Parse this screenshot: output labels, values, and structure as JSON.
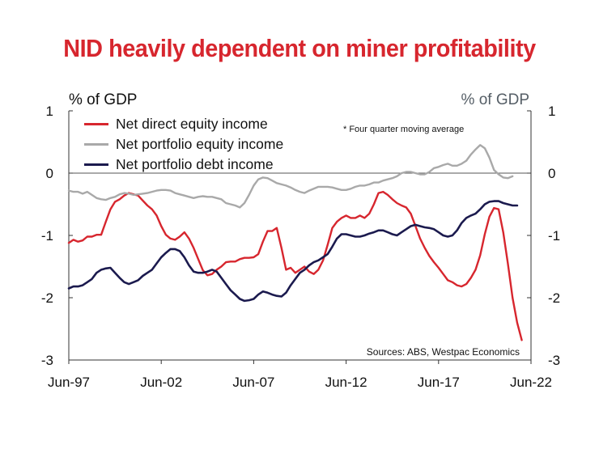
{
  "chart_data": {
    "type": "line",
    "title": "NID heavily dependent on miner profitability",
    "ylabel_left": "% of GDP",
    "ylabel_right": "% of GDP",
    "note": "* Four quarter moving average",
    "source": "Sources: ABS, Westpac Economics",
    "x_tick_labels": [
      "Jun-97",
      "Jun-02",
      "Jun-07",
      "Jun-12",
      "Jun-17",
      "Jun-22"
    ],
    "x_range": [
      1997.5,
      2022.5
    ],
    "ylim": [
      -3,
      1
    ],
    "y_ticks": [
      1,
      0,
      -1,
      -2,
      -3
    ],
    "grid": false,
    "legend_position": "top-left",
    "series": [
      {
        "name": "Net direct equity income",
        "color": "#d7262e",
        "points": [
          [
            1997.5,
            -1.12
          ],
          [
            1997.75,
            -1.07
          ],
          [
            1998.0,
            -1.1
          ],
          [
            1998.25,
            -1.08
          ],
          [
            1998.5,
            -1.02
          ],
          [
            1998.75,
            -1.02
          ],
          [
            1999.0,
            -0.99
          ],
          [
            1999.25,
            -0.99
          ],
          [
            1999.5,
            -0.78
          ],
          [
            1999.75,
            -0.58
          ],
          [
            2000.0,
            -0.46
          ],
          [
            2000.25,
            -0.42
          ],
          [
            2000.5,
            -0.36
          ],
          [
            2000.75,
            -0.32
          ],
          [
            2001.0,
            -0.34
          ],
          [
            2001.25,
            -0.36
          ],
          [
            2001.5,
            -0.44
          ],
          [
            2001.75,
            -0.52
          ],
          [
            2002.0,
            -0.58
          ],
          [
            2002.25,
            -0.68
          ],
          [
            2002.5,
            -0.85
          ],
          [
            2002.75,
            -0.99
          ],
          [
            2003.0,
            -1.05
          ],
          [
            2003.25,
            -1.07
          ],
          [
            2003.5,
            -1.02
          ],
          [
            2003.75,
            -0.95
          ],
          [
            2004.0,
            -1.05
          ],
          [
            2004.25,
            -1.2
          ],
          [
            2004.5,
            -1.38
          ],
          [
            2004.75,
            -1.56
          ],
          [
            2005.0,
            -1.64
          ],
          [
            2005.25,
            -1.62
          ],
          [
            2005.5,
            -1.55
          ],
          [
            2005.75,
            -1.5
          ],
          [
            2006.0,
            -1.43
          ],
          [
            2006.25,
            -1.42
          ],
          [
            2006.5,
            -1.42
          ],
          [
            2006.75,
            -1.38
          ],
          [
            2007.0,
            -1.36
          ],
          [
            2007.25,
            -1.36
          ],
          [
            2007.5,
            -1.35
          ],
          [
            2007.75,
            -1.3
          ],
          [
            2008.0,
            -1.1
          ],
          [
            2008.25,
            -0.93
          ],
          [
            2008.5,
            -0.93
          ],
          [
            2008.75,
            -0.88
          ],
          [
            2009.0,
            -1.2
          ],
          [
            2009.25,
            -1.55
          ],
          [
            2009.5,
            -1.52
          ],
          [
            2009.75,
            -1.6
          ],
          [
            2010.0,
            -1.55
          ],
          [
            2010.25,
            -1.5
          ],
          [
            2010.5,
            -1.58
          ],
          [
            2010.75,
            -1.62
          ],
          [
            2011.0,
            -1.55
          ],
          [
            2011.25,
            -1.4
          ],
          [
            2011.5,
            -1.15
          ],
          [
            2011.75,
            -0.88
          ],
          [
            2012.0,
            -0.78
          ],
          [
            2012.25,
            -0.72
          ],
          [
            2012.5,
            -0.68
          ],
          [
            2012.75,
            -0.72
          ],
          [
            2013.0,
            -0.72
          ],
          [
            2013.25,
            -0.68
          ],
          [
            2013.5,
            -0.72
          ],
          [
            2013.75,
            -0.65
          ],
          [
            2014.0,
            -0.5
          ],
          [
            2014.25,
            -0.32
          ],
          [
            2014.5,
            -0.3
          ],
          [
            2014.75,
            -0.35
          ],
          [
            2015.0,
            -0.42
          ],
          [
            2015.25,
            -0.48
          ],
          [
            2015.5,
            -0.52
          ],
          [
            2015.75,
            -0.55
          ],
          [
            2016.0,
            -0.65
          ],
          [
            2016.25,
            -0.85
          ],
          [
            2016.5,
            -1.05
          ],
          [
            2016.75,
            -1.2
          ],
          [
            2017.0,
            -1.33
          ],
          [
            2017.25,
            -1.43
          ],
          [
            2017.5,
            -1.52
          ],
          [
            2017.75,
            -1.62
          ],
          [
            2018.0,
            -1.72
          ],
          [
            2018.25,
            -1.75
          ],
          [
            2018.5,
            -1.8
          ],
          [
            2018.75,
            -1.82
          ],
          [
            2019.0,
            -1.78
          ],
          [
            2019.25,
            -1.68
          ],
          [
            2019.5,
            -1.55
          ],
          [
            2019.75,
            -1.32
          ],
          [
            2020.0,
            -0.98
          ],
          [
            2020.25,
            -0.7
          ],
          [
            2020.5,
            -0.56
          ],
          [
            2020.75,
            -0.58
          ],
          [
            2021.0,
            -0.95
          ],
          [
            2021.25,
            -1.45
          ],
          [
            2021.5,
            -2.0
          ],
          [
            2021.75,
            -2.4
          ],
          [
            2022.0,
            -2.68
          ]
        ]
      },
      {
        "name": "Net portfolio equity income",
        "color": "#a9a9a9",
        "points": [
          [
            1997.5,
            -0.28
          ],
          [
            1997.75,
            -0.3
          ],
          [
            1998.0,
            -0.3
          ],
          [
            1998.25,
            -0.33
          ],
          [
            1998.5,
            -0.3
          ],
          [
            1998.75,
            -0.35
          ],
          [
            1999.0,
            -0.4
          ],
          [
            1999.25,
            -0.42
          ],
          [
            1999.5,
            -0.43
          ],
          [
            1999.75,
            -0.4
          ],
          [
            2000.0,
            -0.38
          ],
          [
            2000.25,
            -0.34
          ],
          [
            2000.5,
            -0.32
          ],
          [
            2000.75,
            -0.33
          ],
          [
            2001.0,
            -0.35
          ],
          [
            2001.25,
            -0.34
          ],
          [
            2001.5,
            -0.33
          ],
          [
            2001.75,
            -0.32
          ],
          [
            2002.0,
            -0.3
          ],
          [
            2002.25,
            -0.28
          ],
          [
            2002.5,
            -0.27
          ],
          [
            2002.75,
            -0.27
          ],
          [
            2003.0,
            -0.28
          ],
          [
            2003.25,
            -0.32
          ],
          [
            2003.5,
            -0.34
          ],
          [
            2003.75,
            -0.36
          ],
          [
            2004.0,
            -0.38
          ],
          [
            2004.25,
            -0.4
          ],
          [
            2004.5,
            -0.38
          ],
          [
            2004.75,
            -0.37
          ],
          [
            2005.0,
            -0.38
          ],
          [
            2005.25,
            -0.38
          ],
          [
            2005.5,
            -0.4
          ],
          [
            2005.75,
            -0.42
          ],
          [
            2006.0,
            -0.48
          ],
          [
            2006.25,
            -0.5
          ],
          [
            2006.5,
            -0.52
          ],
          [
            2006.75,
            -0.55
          ],
          [
            2007.0,
            -0.48
          ],
          [
            2007.25,
            -0.35
          ],
          [
            2007.5,
            -0.2
          ],
          [
            2007.75,
            -0.1
          ],
          [
            2008.0,
            -0.07
          ],
          [
            2008.25,
            -0.08
          ],
          [
            2008.5,
            -0.12
          ],
          [
            2008.75,
            -0.16
          ],
          [
            2009.0,
            -0.18
          ],
          [
            2009.25,
            -0.2
          ],
          [
            2009.5,
            -0.23
          ],
          [
            2009.75,
            -0.27
          ],
          [
            2010.0,
            -0.3
          ],
          [
            2010.25,
            -0.32
          ],
          [
            2010.5,
            -0.28
          ],
          [
            2010.75,
            -0.25
          ],
          [
            2011.0,
            -0.22
          ],
          [
            2011.25,
            -0.22
          ],
          [
            2011.5,
            -0.22
          ],
          [
            2011.75,
            -0.23
          ],
          [
            2012.0,
            -0.25
          ],
          [
            2012.25,
            -0.27
          ],
          [
            2012.5,
            -0.27
          ],
          [
            2012.75,
            -0.25
          ],
          [
            2013.0,
            -0.22
          ],
          [
            2013.25,
            -0.2
          ],
          [
            2013.5,
            -0.2
          ],
          [
            2013.75,
            -0.18
          ],
          [
            2014.0,
            -0.15
          ],
          [
            2014.25,
            -0.15
          ],
          [
            2014.5,
            -0.12
          ],
          [
            2014.75,
            -0.1
          ],
          [
            2015.0,
            -0.08
          ],
          [
            2015.25,
            -0.05
          ],
          [
            2015.5,
            0.0
          ],
          [
            2015.75,
            0.02
          ],
          [
            2016.0,
            0.02
          ],
          [
            2016.25,
            0.0
          ],
          [
            2016.5,
            -0.02
          ],
          [
            2016.75,
            -0.02
          ],
          [
            2017.0,
            0.02
          ],
          [
            2017.25,
            0.08
          ],
          [
            2017.5,
            0.1
          ],
          [
            2017.75,
            0.13
          ],
          [
            2018.0,
            0.15
          ],
          [
            2018.25,
            0.12
          ],
          [
            2018.5,
            0.12
          ],
          [
            2018.75,
            0.15
          ],
          [
            2019.0,
            0.2
          ],
          [
            2019.25,
            0.3
          ],
          [
            2019.5,
            0.38
          ],
          [
            2019.75,
            0.45
          ],
          [
            2020.0,
            0.4
          ],
          [
            2020.25,
            0.25
          ],
          [
            2020.5,
            0.05
          ],
          [
            2020.75,
            -0.02
          ],
          [
            2021.0,
            -0.07
          ],
          [
            2021.25,
            -0.08
          ],
          [
            2021.5,
            -0.05
          ]
        ]
      },
      {
        "name": "Net portfolio debt income",
        "color": "#1b1a4e",
        "points": [
          [
            1997.5,
            -1.85
          ],
          [
            1997.75,
            -1.82
          ],
          [
            1998.0,
            -1.82
          ],
          [
            1998.25,
            -1.8
          ],
          [
            1998.5,
            -1.75
          ],
          [
            1998.75,
            -1.7
          ],
          [
            1999.0,
            -1.6
          ],
          [
            1999.25,
            -1.55
          ],
          [
            1999.5,
            -1.53
          ],
          [
            1999.75,
            -1.52
          ],
          [
            2000.0,
            -1.6
          ],
          [
            2000.25,
            -1.68
          ],
          [
            2000.5,
            -1.75
          ],
          [
            2000.75,
            -1.78
          ],
          [
            2001.0,
            -1.75
          ],
          [
            2001.25,
            -1.72
          ],
          [
            2001.5,
            -1.65
          ],
          [
            2001.75,
            -1.6
          ],
          [
            2002.0,
            -1.55
          ],
          [
            2002.25,
            -1.45
          ],
          [
            2002.5,
            -1.35
          ],
          [
            2002.75,
            -1.28
          ],
          [
            2003.0,
            -1.22
          ],
          [
            2003.25,
            -1.22
          ],
          [
            2003.5,
            -1.25
          ],
          [
            2003.75,
            -1.35
          ],
          [
            2004.0,
            -1.48
          ],
          [
            2004.25,
            -1.58
          ],
          [
            2004.5,
            -1.6
          ],
          [
            2004.75,
            -1.6
          ],
          [
            2005.0,
            -1.58
          ],
          [
            2005.25,
            -1.55
          ],
          [
            2005.5,
            -1.58
          ],
          [
            2005.75,
            -1.68
          ],
          [
            2006.0,
            -1.78
          ],
          [
            2006.25,
            -1.88
          ],
          [
            2006.5,
            -1.95
          ],
          [
            2006.75,
            -2.02
          ],
          [
            2007.0,
            -2.05
          ],
          [
            2007.25,
            -2.04
          ],
          [
            2007.5,
            -2.02
          ],
          [
            2007.75,
            -1.95
          ],
          [
            2008.0,
            -1.9
          ],
          [
            2008.25,
            -1.92
          ],
          [
            2008.5,
            -1.95
          ],
          [
            2008.75,
            -1.97
          ],
          [
            2009.0,
            -1.98
          ],
          [
            2009.25,
            -1.92
          ],
          [
            2009.5,
            -1.8
          ],
          [
            2009.75,
            -1.7
          ],
          [
            2010.0,
            -1.6
          ],
          [
            2010.25,
            -1.55
          ],
          [
            2010.5,
            -1.48
          ],
          [
            2010.75,
            -1.43
          ],
          [
            2011.0,
            -1.4
          ],
          [
            2011.25,
            -1.35
          ],
          [
            2011.5,
            -1.3
          ],
          [
            2011.75,
            -1.18
          ],
          [
            2012.0,
            -1.05
          ],
          [
            2012.25,
            -0.98
          ],
          [
            2012.5,
            -0.98
          ],
          [
            2012.75,
            -1.0
          ],
          [
            2013.0,
            -1.02
          ],
          [
            2013.25,
            -1.02
          ],
          [
            2013.5,
            -1.0
          ],
          [
            2013.75,
            -0.97
          ],
          [
            2014.0,
            -0.95
          ],
          [
            2014.25,
            -0.92
          ],
          [
            2014.5,
            -0.92
          ],
          [
            2014.75,
            -0.95
          ],
          [
            2015.0,
            -0.98
          ],
          [
            2015.25,
            -1.0
          ],
          [
            2015.5,
            -0.95
          ],
          [
            2015.75,
            -0.9
          ],
          [
            2016.0,
            -0.85
          ],
          [
            2016.25,
            -0.83
          ],
          [
            2016.5,
            -0.85
          ],
          [
            2016.75,
            -0.87
          ],
          [
            2017.0,
            -0.88
          ],
          [
            2017.25,
            -0.9
          ],
          [
            2017.5,
            -0.95
          ],
          [
            2017.75,
            -1.0
          ],
          [
            2018.0,
            -1.02
          ],
          [
            2018.25,
            -1.0
          ],
          [
            2018.5,
            -0.92
          ],
          [
            2018.75,
            -0.8
          ],
          [
            2019.0,
            -0.72
          ],
          [
            2019.25,
            -0.68
          ],
          [
            2019.5,
            -0.65
          ],
          [
            2019.75,
            -0.58
          ],
          [
            2020.0,
            -0.5
          ],
          [
            2020.25,
            -0.46
          ],
          [
            2020.5,
            -0.45
          ],
          [
            2020.75,
            -0.45
          ],
          [
            2021.0,
            -0.48
          ],
          [
            2021.25,
            -0.5
          ],
          [
            2021.5,
            -0.52
          ],
          [
            2021.75,
            -0.52
          ]
        ]
      }
    ]
  }
}
